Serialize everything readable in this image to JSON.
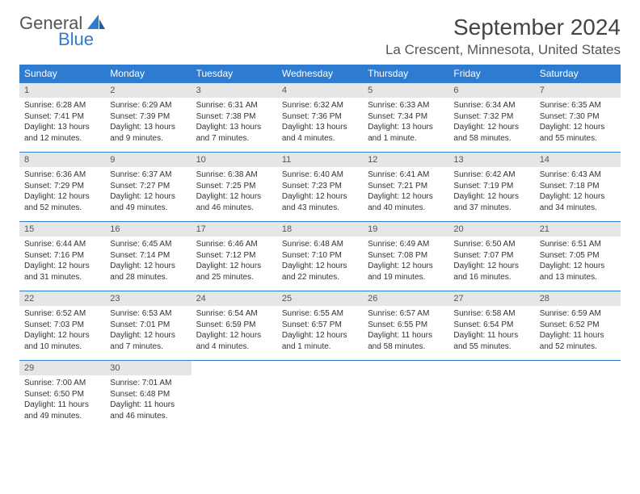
{
  "logo": {
    "text_general": "General",
    "text_blue": "Blue",
    "accent_color": "#2e7cd1"
  },
  "title": "September 2024",
  "location": "La Crescent, Minnesota, United States",
  "colors": {
    "header_bg": "#2e7cd1",
    "header_fg": "#ffffff",
    "daynum_bg": "#e6e6e6",
    "daynum_fg": "#555555",
    "cell_fg": "#333333",
    "border": "#2e7cd1"
  },
  "day_headers": [
    "Sunday",
    "Monday",
    "Tuesday",
    "Wednesday",
    "Thursday",
    "Friday",
    "Saturday"
  ],
  "weeks": [
    [
      {
        "num": "1",
        "sunrise": "Sunrise: 6:28 AM",
        "sunset": "Sunset: 7:41 PM",
        "daylight": "Daylight: 13 hours and 12 minutes."
      },
      {
        "num": "2",
        "sunrise": "Sunrise: 6:29 AM",
        "sunset": "Sunset: 7:39 PM",
        "daylight": "Daylight: 13 hours and 9 minutes."
      },
      {
        "num": "3",
        "sunrise": "Sunrise: 6:31 AM",
        "sunset": "Sunset: 7:38 PM",
        "daylight": "Daylight: 13 hours and 7 minutes."
      },
      {
        "num": "4",
        "sunrise": "Sunrise: 6:32 AM",
        "sunset": "Sunset: 7:36 PM",
        "daylight": "Daylight: 13 hours and 4 minutes."
      },
      {
        "num": "5",
        "sunrise": "Sunrise: 6:33 AM",
        "sunset": "Sunset: 7:34 PM",
        "daylight": "Daylight: 13 hours and 1 minute."
      },
      {
        "num": "6",
        "sunrise": "Sunrise: 6:34 AM",
        "sunset": "Sunset: 7:32 PM",
        "daylight": "Daylight: 12 hours and 58 minutes."
      },
      {
        "num": "7",
        "sunrise": "Sunrise: 6:35 AM",
        "sunset": "Sunset: 7:30 PM",
        "daylight": "Daylight: 12 hours and 55 minutes."
      }
    ],
    [
      {
        "num": "8",
        "sunrise": "Sunrise: 6:36 AM",
        "sunset": "Sunset: 7:29 PM",
        "daylight": "Daylight: 12 hours and 52 minutes."
      },
      {
        "num": "9",
        "sunrise": "Sunrise: 6:37 AM",
        "sunset": "Sunset: 7:27 PM",
        "daylight": "Daylight: 12 hours and 49 minutes."
      },
      {
        "num": "10",
        "sunrise": "Sunrise: 6:38 AM",
        "sunset": "Sunset: 7:25 PM",
        "daylight": "Daylight: 12 hours and 46 minutes."
      },
      {
        "num": "11",
        "sunrise": "Sunrise: 6:40 AM",
        "sunset": "Sunset: 7:23 PM",
        "daylight": "Daylight: 12 hours and 43 minutes."
      },
      {
        "num": "12",
        "sunrise": "Sunrise: 6:41 AM",
        "sunset": "Sunset: 7:21 PM",
        "daylight": "Daylight: 12 hours and 40 minutes."
      },
      {
        "num": "13",
        "sunrise": "Sunrise: 6:42 AM",
        "sunset": "Sunset: 7:19 PM",
        "daylight": "Daylight: 12 hours and 37 minutes."
      },
      {
        "num": "14",
        "sunrise": "Sunrise: 6:43 AM",
        "sunset": "Sunset: 7:18 PM",
        "daylight": "Daylight: 12 hours and 34 minutes."
      }
    ],
    [
      {
        "num": "15",
        "sunrise": "Sunrise: 6:44 AM",
        "sunset": "Sunset: 7:16 PM",
        "daylight": "Daylight: 12 hours and 31 minutes."
      },
      {
        "num": "16",
        "sunrise": "Sunrise: 6:45 AM",
        "sunset": "Sunset: 7:14 PM",
        "daylight": "Daylight: 12 hours and 28 minutes."
      },
      {
        "num": "17",
        "sunrise": "Sunrise: 6:46 AM",
        "sunset": "Sunset: 7:12 PM",
        "daylight": "Daylight: 12 hours and 25 minutes."
      },
      {
        "num": "18",
        "sunrise": "Sunrise: 6:48 AM",
        "sunset": "Sunset: 7:10 PM",
        "daylight": "Daylight: 12 hours and 22 minutes."
      },
      {
        "num": "19",
        "sunrise": "Sunrise: 6:49 AM",
        "sunset": "Sunset: 7:08 PM",
        "daylight": "Daylight: 12 hours and 19 minutes."
      },
      {
        "num": "20",
        "sunrise": "Sunrise: 6:50 AM",
        "sunset": "Sunset: 7:07 PM",
        "daylight": "Daylight: 12 hours and 16 minutes."
      },
      {
        "num": "21",
        "sunrise": "Sunrise: 6:51 AM",
        "sunset": "Sunset: 7:05 PM",
        "daylight": "Daylight: 12 hours and 13 minutes."
      }
    ],
    [
      {
        "num": "22",
        "sunrise": "Sunrise: 6:52 AM",
        "sunset": "Sunset: 7:03 PM",
        "daylight": "Daylight: 12 hours and 10 minutes."
      },
      {
        "num": "23",
        "sunrise": "Sunrise: 6:53 AM",
        "sunset": "Sunset: 7:01 PM",
        "daylight": "Daylight: 12 hours and 7 minutes."
      },
      {
        "num": "24",
        "sunrise": "Sunrise: 6:54 AM",
        "sunset": "Sunset: 6:59 PM",
        "daylight": "Daylight: 12 hours and 4 minutes."
      },
      {
        "num": "25",
        "sunrise": "Sunrise: 6:55 AM",
        "sunset": "Sunset: 6:57 PM",
        "daylight": "Daylight: 12 hours and 1 minute."
      },
      {
        "num": "26",
        "sunrise": "Sunrise: 6:57 AM",
        "sunset": "Sunset: 6:55 PM",
        "daylight": "Daylight: 11 hours and 58 minutes."
      },
      {
        "num": "27",
        "sunrise": "Sunrise: 6:58 AM",
        "sunset": "Sunset: 6:54 PM",
        "daylight": "Daylight: 11 hours and 55 minutes."
      },
      {
        "num": "28",
        "sunrise": "Sunrise: 6:59 AM",
        "sunset": "Sunset: 6:52 PM",
        "daylight": "Daylight: 11 hours and 52 minutes."
      }
    ],
    [
      {
        "num": "29",
        "sunrise": "Sunrise: 7:00 AM",
        "sunset": "Sunset: 6:50 PM",
        "daylight": "Daylight: 11 hours and 49 minutes."
      },
      {
        "num": "30",
        "sunrise": "Sunrise: 7:01 AM",
        "sunset": "Sunset: 6:48 PM",
        "daylight": "Daylight: 11 hours and 46 minutes."
      },
      null,
      null,
      null,
      null,
      null
    ]
  ]
}
